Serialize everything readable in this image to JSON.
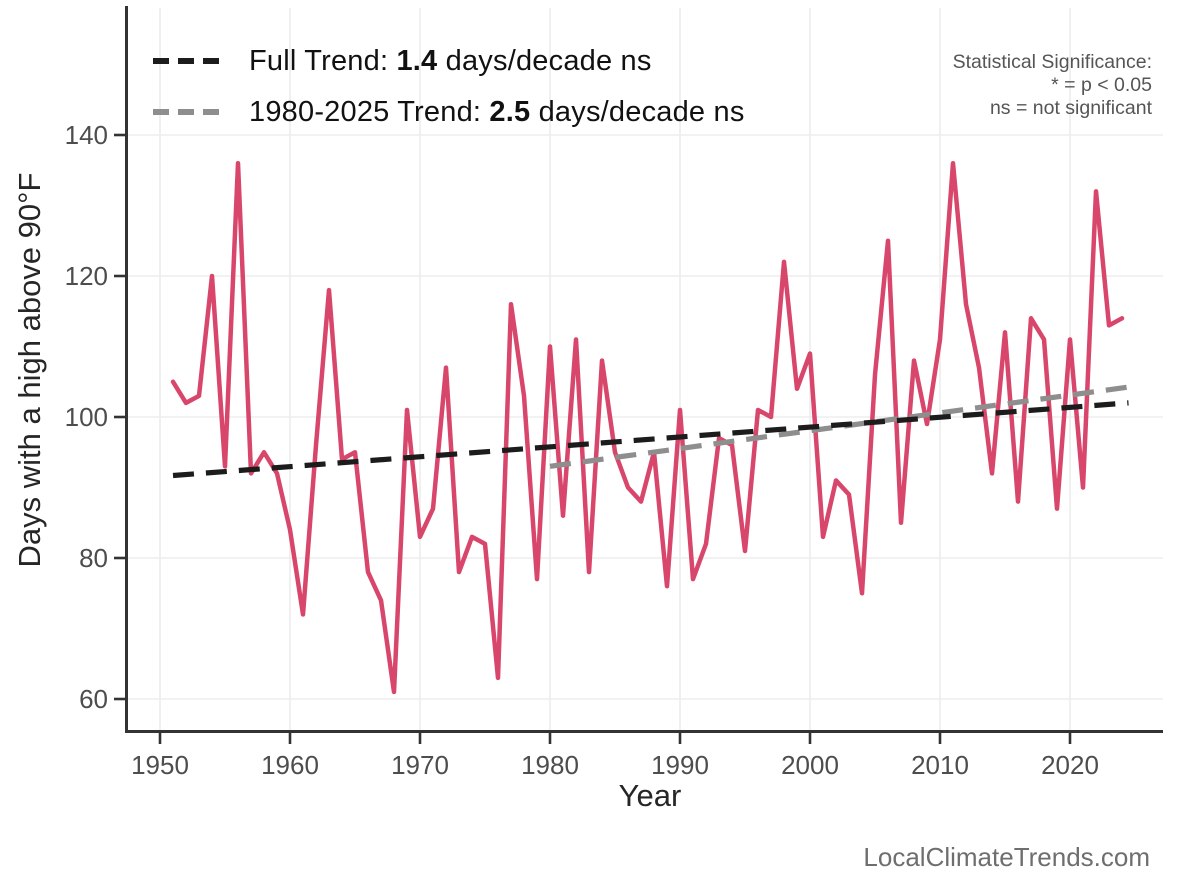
{
  "watermark": "LocalClimateTrends.com",
  "significance_note": {
    "line1": "Statistical Significance:",
    "line2": "* = p < 0.05",
    "line3": "ns = not significant"
  },
  "legend": [
    {
      "label_prefix": "Full Trend: ",
      "value": "1.4",
      "label_suffix": " days/decade ns",
      "color": "#1c1c1c"
    },
    {
      "label_prefix": "1980-2025 Trend: ",
      "value": "2.5",
      "label_suffix": " days/decade ns",
      "color": "#8e8e8e"
    }
  ],
  "colors": {
    "series_pink": "#D8476B",
    "full_trend": "#1c1c1c",
    "recent_trend": "#8e8e8e",
    "gridline": "#ededed",
    "axis_line": "#333333",
    "tick_label": "#4d4d4d",
    "axis_title": "#262626"
  },
  "chart_data": {
    "type": "line",
    "title": "",
    "xlabel": "Year",
    "ylabel": "Days with a high above 90°F",
    "x_ticks": [
      1950,
      1960,
      1970,
      1980,
      1990,
      2000,
      2010,
      2020
    ],
    "y_ticks": [
      60,
      80,
      100,
      120,
      140
    ],
    "xlim": [
      1947,
      2027
    ],
    "ylim": [
      55,
      158
    ],
    "grid": true,
    "legend_position": "top-left",
    "series": [
      {
        "name": "days-above-90F-annual",
        "style": "solid",
        "color": "#D8476B",
        "x": [
          1951,
          1952,
          1953,
          1954,
          1955,
          1956,
          1957,
          1958,
          1959,
          1960,
          1961,
          1962,
          1963,
          1964,
          1965,
          1966,
          1967,
          1968,
          1969,
          1970,
          1971,
          1972,
          1973,
          1974,
          1975,
          1976,
          1977,
          1978,
          1979,
          1980,
          1981,
          1982,
          1983,
          1984,
          1985,
          1986,
          1987,
          1988,
          1989,
          1990,
          1991,
          1992,
          1993,
          1994,
          1995,
          1996,
          1997,
          1998,
          1999,
          2000,
          2001,
          2002,
          2003,
          2004,
          2005,
          2006,
          2007,
          2008,
          2009,
          2010,
          2011,
          2012,
          2013,
          2014,
          2015,
          2016,
          2017,
          2018,
          2019,
          2020,
          2021,
          2022,
          2023,
          2024
        ],
        "y": [
          105,
          102,
          103,
          120,
          93,
          136,
          92,
          95,
          92,
          84,
          72,
          96,
          118,
          94,
          95,
          78,
          74,
          61,
          101,
          83,
          87,
          107,
          78,
          83,
          82,
          63,
          116,
          103,
          77,
          110,
          86,
          111,
          78,
          108,
          95,
          90,
          88,
          95,
          76,
          101,
          77,
          82,
          97,
          96,
          81,
          101,
          100,
          122,
          104,
          109,
          83,
          91,
          89,
          75,
          106,
          125,
          85,
          108,
          99,
          111,
          136,
          116,
          107,
          92,
          112,
          88,
          114,
          111,
          87,
          111,
          90,
          132,
          113,
          114
        ]
      },
      {
        "name": "trend-1980-2025",
        "style": "dashed",
        "color": "#8e8e8e",
        "slope_days_per_decade": 2.5,
        "significance": "ns",
        "x": [
          1980,
          2024.7
        ],
        "y": [
          93.0,
          104.3
        ]
      },
      {
        "name": "full-trend",
        "style": "dashed",
        "color": "#1c1c1c",
        "slope_days_per_decade": 1.4,
        "significance": "ns",
        "x": [
          1951,
          2024.5
        ],
        "y": [
          91.7,
          102.0
        ]
      }
    ]
  }
}
